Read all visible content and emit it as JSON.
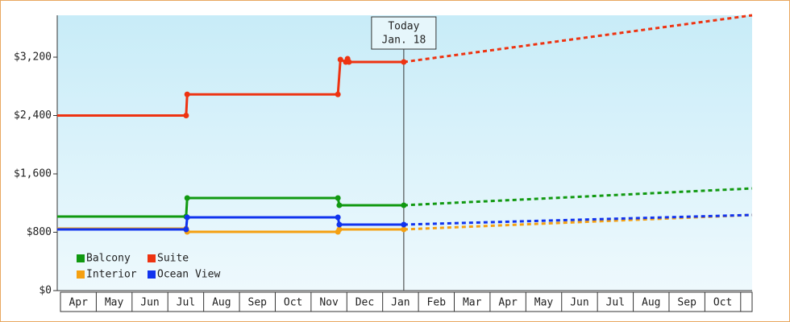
{
  "chart_data": {
    "type": "line",
    "ylim": [
      0,
      3774
    ],
    "yticks": [
      {
        "value": 0,
        "label": "$0"
      },
      {
        "value": 800,
        "label": "$800"
      },
      {
        "value": 1600,
        "label": "$1,600"
      },
      {
        "value": 2400,
        "label": "$2,400"
      },
      {
        "value": 3200,
        "label": "$3,200"
      }
    ],
    "xlim": [
      -0.09,
      19.32
    ],
    "xticks": [
      {
        "value": 0.5,
        "label": "Apr"
      },
      {
        "value": 1.5,
        "label": "May"
      },
      {
        "value": 2.5,
        "label": "Jun"
      },
      {
        "value": 3.5,
        "label": "Jul"
      },
      {
        "value": 4.5,
        "label": "Aug"
      },
      {
        "value": 5.5,
        "label": "Sep"
      },
      {
        "value": 6.5,
        "label": "Oct"
      },
      {
        "value": 7.5,
        "label": "Nov"
      },
      {
        "value": 8.5,
        "label": "Dec"
      },
      {
        "value": 9.5,
        "label": "Jan"
      },
      {
        "value": 10.5,
        "label": "Feb"
      },
      {
        "value": 11.5,
        "label": "Mar"
      },
      {
        "value": 12.5,
        "label": "Apr"
      },
      {
        "value": 13.5,
        "label": "May"
      },
      {
        "value": 14.5,
        "label": "Jun"
      },
      {
        "value": 15.5,
        "label": "Jul"
      },
      {
        "value": 16.5,
        "label": "Aug"
      },
      {
        "value": 17.5,
        "label": "Sep"
      },
      {
        "value": 18.5,
        "label": "Oct"
      }
    ],
    "annotation": {
      "lines": [
        "Today",
        "Jan. 18"
      ],
      "x": 9.59
    },
    "series": [
      {
        "name": "Balcony",
        "color": "#119911",
        "x": [
          -0.09,
          3.51,
          3.54,
          7.75,
          7.79,
          9.59
        ],
        "values": [
          1015,
          1015,
          1269,
          1269,
          1170,
          1170
        ],
        "forecast_x": [
          9.59,
          19.32
        ],
        "forecast_values": [
          1170,
          1401
        ]
      },
      {
        "name": "Suite",
        "color": "#ee3311",
        "x": [
          -0.09,
          3.51,
          3.54,
          7.75,
          7.82,
          7.97,
          8.02,
          8.06,
          9.59
        ],
        "values": [
          2400,
          2400,
          2690,
          2690,
          3167,
          3134,
          3178,
          3134,
          3134
        ],
        "forecast_x": [
          9.59,
          19.32
        ],
        "forecast_values": [
          3134,
          3774
        ]
      },
      {
        "name": "Interior",
        "color": "#f5a011",
        "x": [
          -0.09,
          3.51,
          3.54,
          7.75,
          7.79,
          9.59
        ],
        "values": [
          850,
          850,
          805,
          805,
          839,
          839
        ],
        "forecast_x": [
          9.59,
          19.32
        ],
        "forecast_values": [
          839,
          1037
        ]
      },
      {
        "name": "Ocean View",
        "color": "#1133ee",
        "x": [
          -0.09,
          3.51,
          3.54,
          7.75,
          7.79,
          9.59
        ],
        "values": [
          839,
          839,
          1004,
          1004,
          905,
          905
        ],
        "forecast_x": [
          9.59,
          19.32
        ],
        "forecast_values": [
          905,
          1037
        ]
      }
    ]
  }
}
